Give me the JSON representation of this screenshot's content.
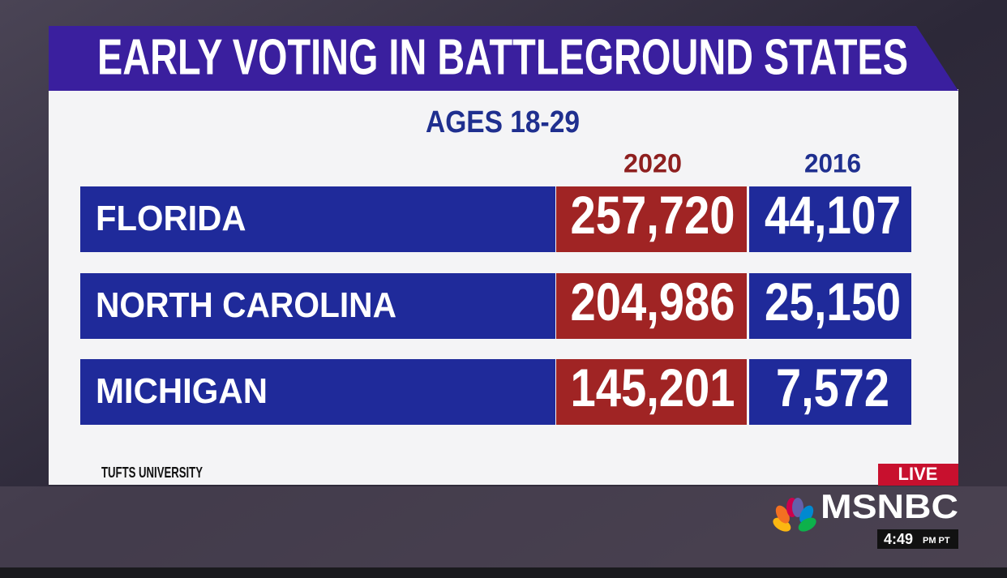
{
  "header": {
    "title": "EARLY VOTING IN BATTLEGROUND STATES",
    "subtitle": "AGES 18-29"
  },
  "table": {
    "columns": [
      "2020",
      "2016"
    ],
    "rows": [
      [
        "FLORIDA",
        "257,720",
        "44,107"
      ],
      [
        "NORTH CAROLINA",
        "204,986",
        "25,150"
      ],
      [
        "MICHIGAN",
        "145,201",
        "7,572"
      ]
    ]
  },
  "source": "TUFTS UNIVERSITY",
  "broadcast": {
    "live": "LIVE",
    "network": "MSNBC",
    "time": "4:49",
    "period": "PM PT"
  }
}
